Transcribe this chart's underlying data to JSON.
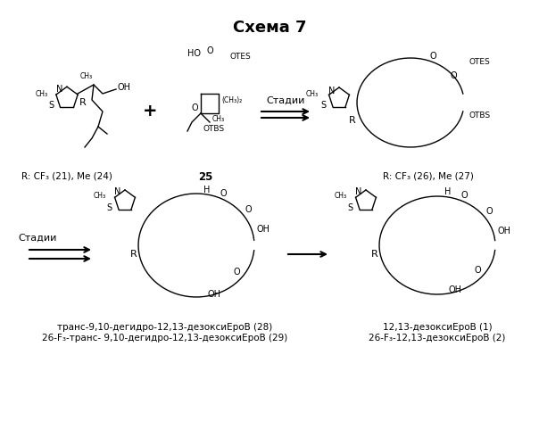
{
  "title": "Схема 7",
  "title_fontsize": 13,
  "title_bold": true,
  "background_color": "#ffffff",
  "fig_width": 6.04,
  "fig_height": 5.0,
  "dpi": 100,
  "top_row": {
    "left_label": "R: CF₃ (21), Me (24)",
    "middle_label": "25",
    "right_label": "R: CF₃ (26), Me (27)",
    "arrow_label": "Стадии",
    "plus_sign": "+"
  },
  "bottom_row": {
    "left_arrow_label": "Стадии",
    "label_left1": "транс-9,10-дегидро-12,13-дезоксиЕроВ (28)",
    "label_left2": "26-F₃-транс- 9,10-дегидро-12,13-дезоксиЕроВ (29)",
    "label_right1": "12,13-дезоксиЕроВ (1)",
    "label_right2": "26-F₃-12,13-дезоксиЕроВ (2)"
  },
  "structure_images": {
    "use_placeholder": true
  },
  "font_size_labels": 7.5,
  "font_size_arrow": 8
}
